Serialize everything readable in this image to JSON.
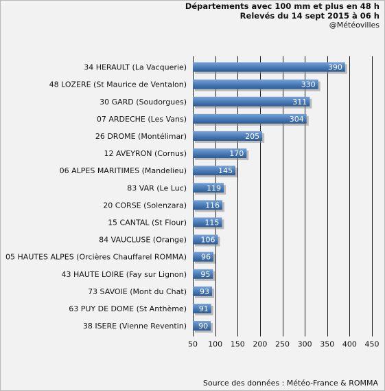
{
  "header": {
    "title_line1": "Départements avec 100 mm et plus en 48 h",
    "title_line2": "Relevés du 14 sept 2015 à 06 h",
    "credit": "@Météovilles"
  },
  "footer": {
    "source": "Source des données : Météo-France & ROMMA"
  },
  "colors": {
    "bar_dark": "#2e5a8f",
    "bar_mid": "#4f81bd",
    "bar_light": "#7aa3d6",
    "grid": "#1a1a1a",
    "background": "#f2f2f2"
  },
  "chart_data": {
    "type": "bar",
    "orientation": "horizontal",
    "title": "Départements avec 100 mm et plus en 48 h",
    "subtitle": "Relevés du 14 sept 2015 à 06 h",
    "categories": [
      "34 HERAULT (La Vacquerie)",
      "48 LOZERE (St Maurice de Ventalon)",
      "30 GARD (Soudorgues)",
      "07 ARDECHE (Les Vans)",
      "26 DROME (Montélimar)",
      "12 AVEYRON (Cornus)",
      "06 ALPES MARITIMES (Mandelieu)",
      "83 VAR (Le Luc)",
      "20 CORSE (Solenzara)",
      "15 CANTAL (St Flour)",
      "84 VAUCLUSE (Orange)",
      "05 HAUTES ALPES (Orcières Chauffarel ROMMA)",
      "43 HAUTE LOIRE (Fay sur Lignon)",
      "73 SAVOIE (Mont du Chat)",
      "63 PUY DE DOME (St Anthème)",
      "38 ISERE (Vienne Reventin)"
    ],
    "values": [
      390,
      330,
      311,
      304,
      205,
      170,
      145,
      119,
      116,
      115,
      106,
      96,
      95,
      93,
      91,
      90
    ],
    "xlim": [
      50,
      450
    ],
    "xticks": [
      50,
      100,
      150,
      200,
      250,
      300,
      350,
      400,
      450
    ],
    "xlabel": "",
    "ylabel": "",
    "grid": "vertical",
    "data_labels": true
  }
}
